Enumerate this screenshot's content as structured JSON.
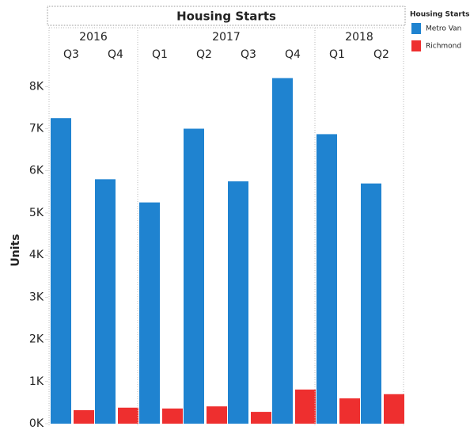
{
  "chart_data": {
    "type": "bar",
    "title": "Housing Starts",
    "y_label": "Units",
    "groups": [
      {
        "label": "2016",
        "categories": [
          "Q3",
          "Q4"
        ]
      },
      {
        "label": "2017",
        "categories": [
          "Q1",
          "Q2",
          "Q3",
          "Q4"
        ]
      },
      {
        "label": "2018",
        "categories": [
          "Q1",
          "Q2"
        ]
      }
    ],
    "series": [
      {
        "name": "Metro Van",
        "color": "#1f83d0",
        "values": [
          7250,
          5800,
          5250,
          7000,
          5750,
          8200,
          6870,
          5700
        ]
      },
      {
        "name": "Richmond",
        "color": "#ee2f2f",
        "values": [
          320,
          380,
          360,
          410,
          280,
          810,
          600,
          700
        ]
      }
    ],
    "legend_title": "Housing Starts",
    "ylim": [
      0,
      8400
    ],
    "yticks": [
      {
        "value": 0,
        "label": "0K"
      },
      {
        "value": 1000,
        "label": "1K"
      },
      {
        "value": 2000,
        "label": "2K"
      },
      {
        "value": 3000,
        "label": "3K"
      },
      {
        "value": 4000,
        "label": "4K"
      },
      {
        "value": 5000,
        "label": "5K"
      },
      {
        "value": 6000,
        "label": "6K"
      },
      {
        "value": 7000,
        "label": "7K"
      },
      {
        "value": 8000,
        "label": "8K"
      }
    ],
    "legend_position": "right"
  }
}
